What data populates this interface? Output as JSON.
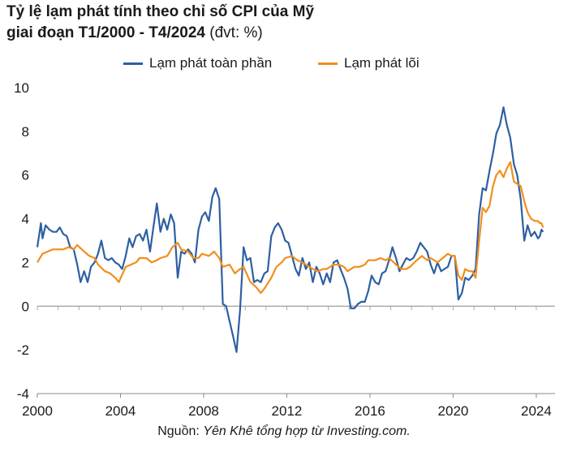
{
  "title": {
    "line1": "Tỷ lệ lạm phát tính theo chỉ số CPI của Mỹ",
    "line2": "giai đoạn T1/2000 - T4/2024",
    "unit": "(đvt: %)"
  },
  "source": {
    "prefix": "Nguồn: ",
    "body": "Yên Khê tổng hợp từ Investing.com."
  },
  "colors": {
    "headline": "#2e5fa3",
    "core": "#f28e1c",
    "axis": "#888888",
    "tick": "#aaaaaa"
  },
  "chart_data": {
    "type": "line",
    "title": "Tỷ lệ lạm phát tính theo chỉ số CPI của Mỹ giai đoạn T1/2000 - T4/2024",
    "xlabel": "",
    "ylabel": "",
    "xlim": [
      2000,
      2024.9
    ],
    "ylim": [
      -4,
      10
    ],
    "yticks": [
      -4,
      -2,
      0,
      2,
      4,
      6,
      8,
      10
    ],
    "xticks": [
      2000,
      2004,
      2008,
      2012,
      2016,
      2020,
      2024
    ],
    "grid": false,
    "legend_position": "top-center",
    "series": [
      {
        "name": "Lạm phát toàn phần",
        "color": "#2e5fa3",
        "points": [
          [
            2000.0,
            2.7
          ],
          [
            2000.17,
            3.8
          ],
          [
            2000.25,
            3.1
          ],
          [
            2000.4,
            3.7
          ],
          [
            2000.58,
            3.5
          ],
          [
            2000.75,
            3.4
          ],
          [
            2000.92,
            3.4
          ],
          [
            2001.08,
            3.6
          ],
          [
            2001.25,
            3.3
          ],
          [
            2001.42,
            3.2
          ],
          [
            2001.58,
            2.7
          ],
          [
            2001.75,
            2.6
          ],
          [
            2001.92,
            1.9
          ],
          [
            2002.08,
            1.1
          ],
          [
            2002.25,
            1.6
          ],
          [
            2002.42,
            1.1
          ],
          [
            2002.58,
            1.8
          ],
          [
            2002.75,
            2.0
          ],
          [
            2002.92,
            2.4
          ],
          [
            2003.08,
            3.0
          ],
          [
            2003.25,
            2.2
          ],
          [
            2003.42,
            2.1
          ],
          [
            2003.58,
            2.2
          ],
          [
            2003.75,
            2.0
          ],
          [
            2003.92,
            1.9
          ],
          [
            2004.08,
            1.7
          ],
          [
            2004.25,
            2.3
          ],
          [
            2004.42,
            3.1
          ],
          [
            2004.58,
            2.7
          ],
          [
            2004.75,
            3.2
          ],
          [
            2004.92,
            3.3
          ],
          [
            2005.08,
            3.0
          ],
          [
            2005.25,
            3.5
          ],
          [
            2005.42,
            2.5
          ],
          [
            2005.58,
            3.6
          ],
          [
            2005.75,
            4.7
          ],
          [
            2005.92,
            3.4
          ],
          [
            2006.08,
            4.0
          ],
          [
            2006.25,
            3.5
          ],
          [
            2006.42,
            4.2
          ],
          [
            2006.58,
            3.8
          ],
          [
            2006.75,
            1.3
          ],
          [
            2006.92,
            2.5
          ],
          [
            2007.08,
            2.4
          ],
          [
            2007.25,
            2.6
          ],
          [
            2007.42,
            2.4
          ],
          [
            2007.58,
            2.0
          ],
          [
            2007.75,
            3.5
          ],
          [
            2007.92,
            4.1
          ],
          [
            2008.08,
            4.3
          ],
          [
            2008.25,
            3.9
          ],
          [
            2008.42,
            5.0
          ],
          [
            2008.58,
            5.4
          ],
          [
            2008.75,
            4.9
          ],
          [
            2008.92,
            0.1
          ],
          [
            2009.08,
            0.0
          ],
          [
            2009.25,
            -0.7
          ],
          [
            2009.42,
            -1.4
          ],
          [
            2009.58,
            -2.1
          ],
          [
            2009.75,
            -0.2
          ],
          [
            2009.92,
            2.7
          ],
          [
            2010.08,
            2.1
          ],
          [
            2010.25,
            2.2
          ],
          [
            2010.42,
            1.1
          ],
          [
            2010.58,
            1.2
          ],
          [
            2010.75,
            1.1
          ],
          [
            2010.92,
            1.5
          ],
          [
            2011.08,
            1.6
          ],
          [
            2011.25,
            3.2
          ],
          [
            2011.42,
            3.6
          ],
          [
            2011.58,
            3.8
          ],
          [
            2011.75,
            3.5
          ],
          [
            2011.92,
            3.0
          ],
          [
            2012.08,
            2.9
          ],
          [
            2012.25,
            2.3
          ],
          [
            2012.42,
            1.7
          ],
          [
            2012.58,
            1.4
          ],
          [
            2012.75,
            2.2
          ],
          [
            2012.92,
            1.7
          ],
          [
            2013.08,
            2.0
          ],
          [
            2013.25,
            1.1
          ],
          [
            2013.42,
            1.8
          ],
          [
            2013.58,
            1.5
          ],
          [
            2013.75,
            1.0
          ],
          [
            2013.92,
            1.5
          ],
          [
            2014.08,
            1.1
          ],
          [
            2014.25,
            2.0
          ],
          [
            2014.42,
            2.1
          ],
          [
            2014.58,
            1.7
          ],
          [
            2014.75,
            1.3
          ],
          [
            2014.92,
            0.8
          ],
          [
            2015.08,
            -0.1
          ],
          [
            2015.25,
            -0.1
          ],
          [
            2015.42,
            0.1
          ],
          [
            2015.58,
            0.2
          ],
          [
            2015.75,
            0.2
          ],
          [
            2015.92,
            0.7
          ],
          [
            2016.08,
            1.4
          ],
          [
            2016.25,
            1.1
          ],
          [
            2016.42,
            1.0
          ],
          [
            2016.58,
            1.5
          ],
          [
            2016.75,
            1.6
          ],
          [
            2016.92,
            2.1
          ],
          [
            2017.08,
            2.7
          ],
          [
            2017.25,
            2.2
          ],
          [
            2017.42,
            1.6
          ],
          [
            2017.58,
            1.9
          ],
          [
            2017.75,
            2.2
          ],
          [
            2017.92,
            2.1
          ],
          [
            2018.08,
            2.2
          ],
          [
            2018.25,
            2.5
          ],
          [
            2018.42,
            2.9
          ],
          [
            2018.58,
            2.7
          ],
          [
            2018.75,
            2.5
          ],
          [
            2018.92,
            1.9
          ],
          [
            2019.08,
            1.5
          ],
          [
            2019.25,
            2.0
          ],
          [
            2019.42,
            1.6
          ],
          [
            2019.58,
            1.7
          ],
          [
            2019.75,
            1.8
          ],
          [
            2019.92,
            2.3
          ],
          [
            2020.08,
            2.3
          ],
          [
            2020.25,
            0.3
          ],
          [
            2020.42,
            0.6
          ],
          [
            2020.58,
            1.3
          ],
          [
            2020.75,
            1.2
          ],
          [
            2020.92,
            1.4
          ],
          [
            2021.08,
            1.7
          ],
          [
            2021.25,
            4.2
          ],
          [
            2021.42,
            5.4
          ],
          [
            2021.58,
            5.3
          ],
          [
            2021.75,
            6.2
          ],
          [
            2021.92,
            7.0
          ],
          [
            2022.08,
            7.9
          ],
          [
            2022.25,
            8.3
          ],
          [
            2022.42,
            9.1
          ],
          [
            2022.58,
            8.3
          ],
          [
            2022.75,
            7.7
          ],
          [
            2022.92,
            6.5
          ],
          [
            2023.08,
            6.0
          ],
          [
            2023.25,
            4.9
          ],
          [
            2023.42,
            3.0
          ],
          [
            2023.58,
            3.7
          ],
          [
            2023.75,
            3.2
          ],
          [
            2023.92,
            3.4
          ],
          [
            2024.08,
            3.1
          ],
          [
            2024.17,
            3.2
          ],
          [
            2024.25,
            3.5
          ],
          [
            2024.33,
            3.4
          ]
        ]
      },
      {
        "name": "Lạm phát lõi",
        "color": "#f28e1c",
        "points": [
          [
            2000.0,
            2.0
          ],
          [
            2000.25,
            2.4
          ],
          [
            2000.5,
            2.5
          ],
          [
            2000.75,
            2.6
          ],
          [
            2000.92,
            2.6
          ],
          [
            2001.25,
            2.6
          ],
          [
            2001.5,
            2.7
          ],
          [
            2001.75,
            2.6
          ],
          [
            2001.92,
            2.8
          ],
          [
            2002.25,
            2.5
          ],
          [
            2002.5,
            2.3
          ],
          [
            2002.75,
            2.2
          ],
          [
            2002.92,
            1.9
          ],
          [
            2003.25,
            1.6
          ],
          [
            2003.5,
            1.5
          ],
          [
            2003.75,
            1.3
          ],
          [
            2003.92,
            1.1
          ],
          [
            2004.25,
            1.8
          ],
          [
            2004.5,
            1.9
          ],
          [
            2004.75,
            2.0
          ],
          [
            2004.92,
            2.2
          ],
          [
            2005.25,
            2.2
          ],
          [
            2005.5,
            2.0
          ],
          [
            2005.75,
            2.1
          ],
          [
            2005.92,
            2.2
          ],
          [
            2006.25,
            2.3
          ],
          [
            2006.5,
            2.7
          ],
          [
            2006.75,
            2.9
          ],
          [
            2006.92,
            2.6
          ],
          [
            2007.25,
            2.5
          ],
          [
            2007.5,
            2.2
          ],
          [
            2007.75,
            2.2
          ],
          [
            2007.92,
            2.4
          ],
          [
            2008.25,
            2.3
          ],
          [
            2008.5,
            2.5
          ],
          [
            2008.75,
            2.2
          ],
          [
            2008.92,
            1.8
          ],
          [
            2009.25,
            1.9
          ],
          [
            2009.5,
            1.5
          ],
          [
            2009.75,
            1.7
          ],
          [
            2009.92,
            1.8
          ],
          [
            2010.25,
            1.1
          ],
          [
            2010.5,
            0.9
          ],
          [
            2010.75,
            0.6
          ],
          [
            2010.92,
            0.8
          ],
          [
            2011.25,
            1.3
          ],
          [
            2011.5,
            1.8
          ],
          [
            2011.75,
            2.0
          ],
          [
            2011.92,
            2.2
          ],
          [
            2012.25,
            2.3
          ],
          [
            2012.5,
            2.1
          ],
          [
            2012.75,
            2.0
          ],
          [
            2012.92,
            1.9
          ],
          [
            2013.25,
            1.7
          ],
          [
            2013.5,
            1.6
          ],
          [
            2013.75,
            1.7
          ],
          [
            2013.92,
            1.7
          ],
          [
            2014.25,
            1.9
          ],
          [
            2014.5,
            1.9
          ],
          [
            2014.75,
            1.8
          ],
          [
            2014.92,
            1.6
          ],
          [
            2015.25,
            1.8
          ],
          [
            2015.5,
            1.8
          ],
          [
            2015.75,
            1.9
          ],
          [
            2015.92,
            2.1
          ],
          [
            2016.25,
            2.1
          ],
          [
            2016.5,
            2.2
          ],
          [
            2016.75,
            2.1
          ],
          [
            2016.92,
            2.2
          ],
          [
            2017.25,
            1.9
          ],
          [
            2017.5,
            1.7
          ],
          [
            2017.75,
            1.7
          ],
          [
            2017.92,
            1.8
          ],
          [
            2018.25,
            2.1
          ],
          [
            2018.5,
            2.3
          ],
          [
            2018.75,
            2.1
          ],
          [
            2018.92,
            2.2
          ],
          [
            2019.25,
            2.0
          ],
          [
            2019.5,
            2.2
          ],
          [
            2019.75,
            2.4
          ],
          [
            2019.92,
            2.3
          ],
          [
            2020.08,
            2.3
          ],
          [
            2020.25,
            1.4
          ],
          [
            2020.42,
            1.2
          ],
          [
            2020.58,
            1.7
          ],
          [
            2020.75,
            1.6
          ],
          [
            2020.92,
            1.6
          ],
          [
            2021.08,
            1.3
          ],
          [
            2021.25,
            3.0
          ],
          [
            2021.42,
            4.5
          ],
          [
            2021.58,
            4.3
          ],
          [
            2021.75,
            4.6
          ],
          [
            2021.92,
            5.5
          ],
          [
            2022.08,
            6.0
          ],
          [
            2022.25,
            6.2
          ],
          [
            2022.42,
            5.9
          ],
          [
            2022.58,
            6.3
          ],
          [
            2022.75,
            6.6
          ],
          [
            2022.92,
            5.7
          ],
          [
            2023.08,
            5.6
          ],
          [
            2023.25,
            5.5
          ],
          [
            2023.42,
            4.8
          ],
          [
            2023.58,
            4.3
          ],
          [
            2023.75,
            4.0
          ],
          [
            2023.92,
            3.9
          ],
          [
            2024.08,
            3.9
          ],
          [
            2024.17,
            3.8
          ],
          [
            2024.25,
            3.8
          ],
          [
            2024.33,
            3.6
          ]
        ]
      }
    ]
  }
}
